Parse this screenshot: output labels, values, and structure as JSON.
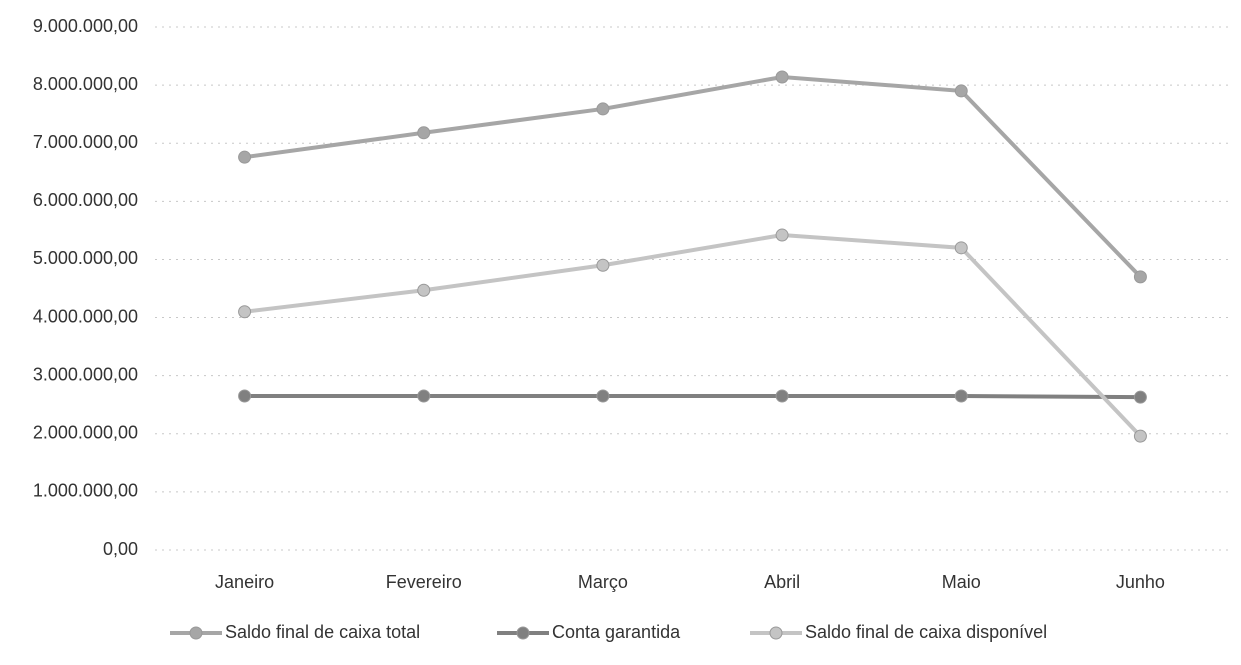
{
  "chart_data": {
    "type": "line",
    "categories": [
      "Janeiro",
      "Fevereiro",
      "Março",
      "Abril",
      "Maio",
      "Junho"
    ],
    "series": [
      {
        "name": "Saldo final de caixa total",
        "color": "#a6a6a6",
        "values": [
          6760000,
          7180000,
          7590000,
          8140000,
          7900000,
          4700000
        ]
      },
      {
        "name": "Conta garantida",
        "color": "#808080",
        "values": [
          2650000,
          2650000,
          2650000,
          2650000,
          2650000,
          2630000
        ]
      },
      {
        "name": "Saldo final de caixa disponível",
        "color": "#c4c4c4",
        "values": [
          4100000,
          4470000,
          4900000,
          5420000,
          5200000,
          1960000
        ]
      }
    ],
    "ylim": [
      0,
      9000000
    ],
    "yticks": [
      {
        "value": 0,
        "label": "0,00"
      },
      {
        "value": 1000000,
        "label": "1.000.000,00"
      },
      {
        "value": 2000000,
        "label": "2.000.000,00"
      },
      {
        "value": 3000000,
        "label": "3.000.000,00"
      },
      {
        "value": 4000000,
        "label": "4.000.000,00"
      },
      {
        "value": 5000000,
        "label": "5.000.000,00"
      },
      {
        "value": 6000000,
        "label": "6.000.000,00"
      },
      {
        "value": 7000000,
        "label": "7.000.000,00"
      },
      {
        "value": 8000000,
        "label": "8.000.000,00"
      },
      {
        "value": 9000000,
        "label": "9.000.000,00"
      }
    ],
    "grid": true,
    "legend": "bottom"
  }
}
